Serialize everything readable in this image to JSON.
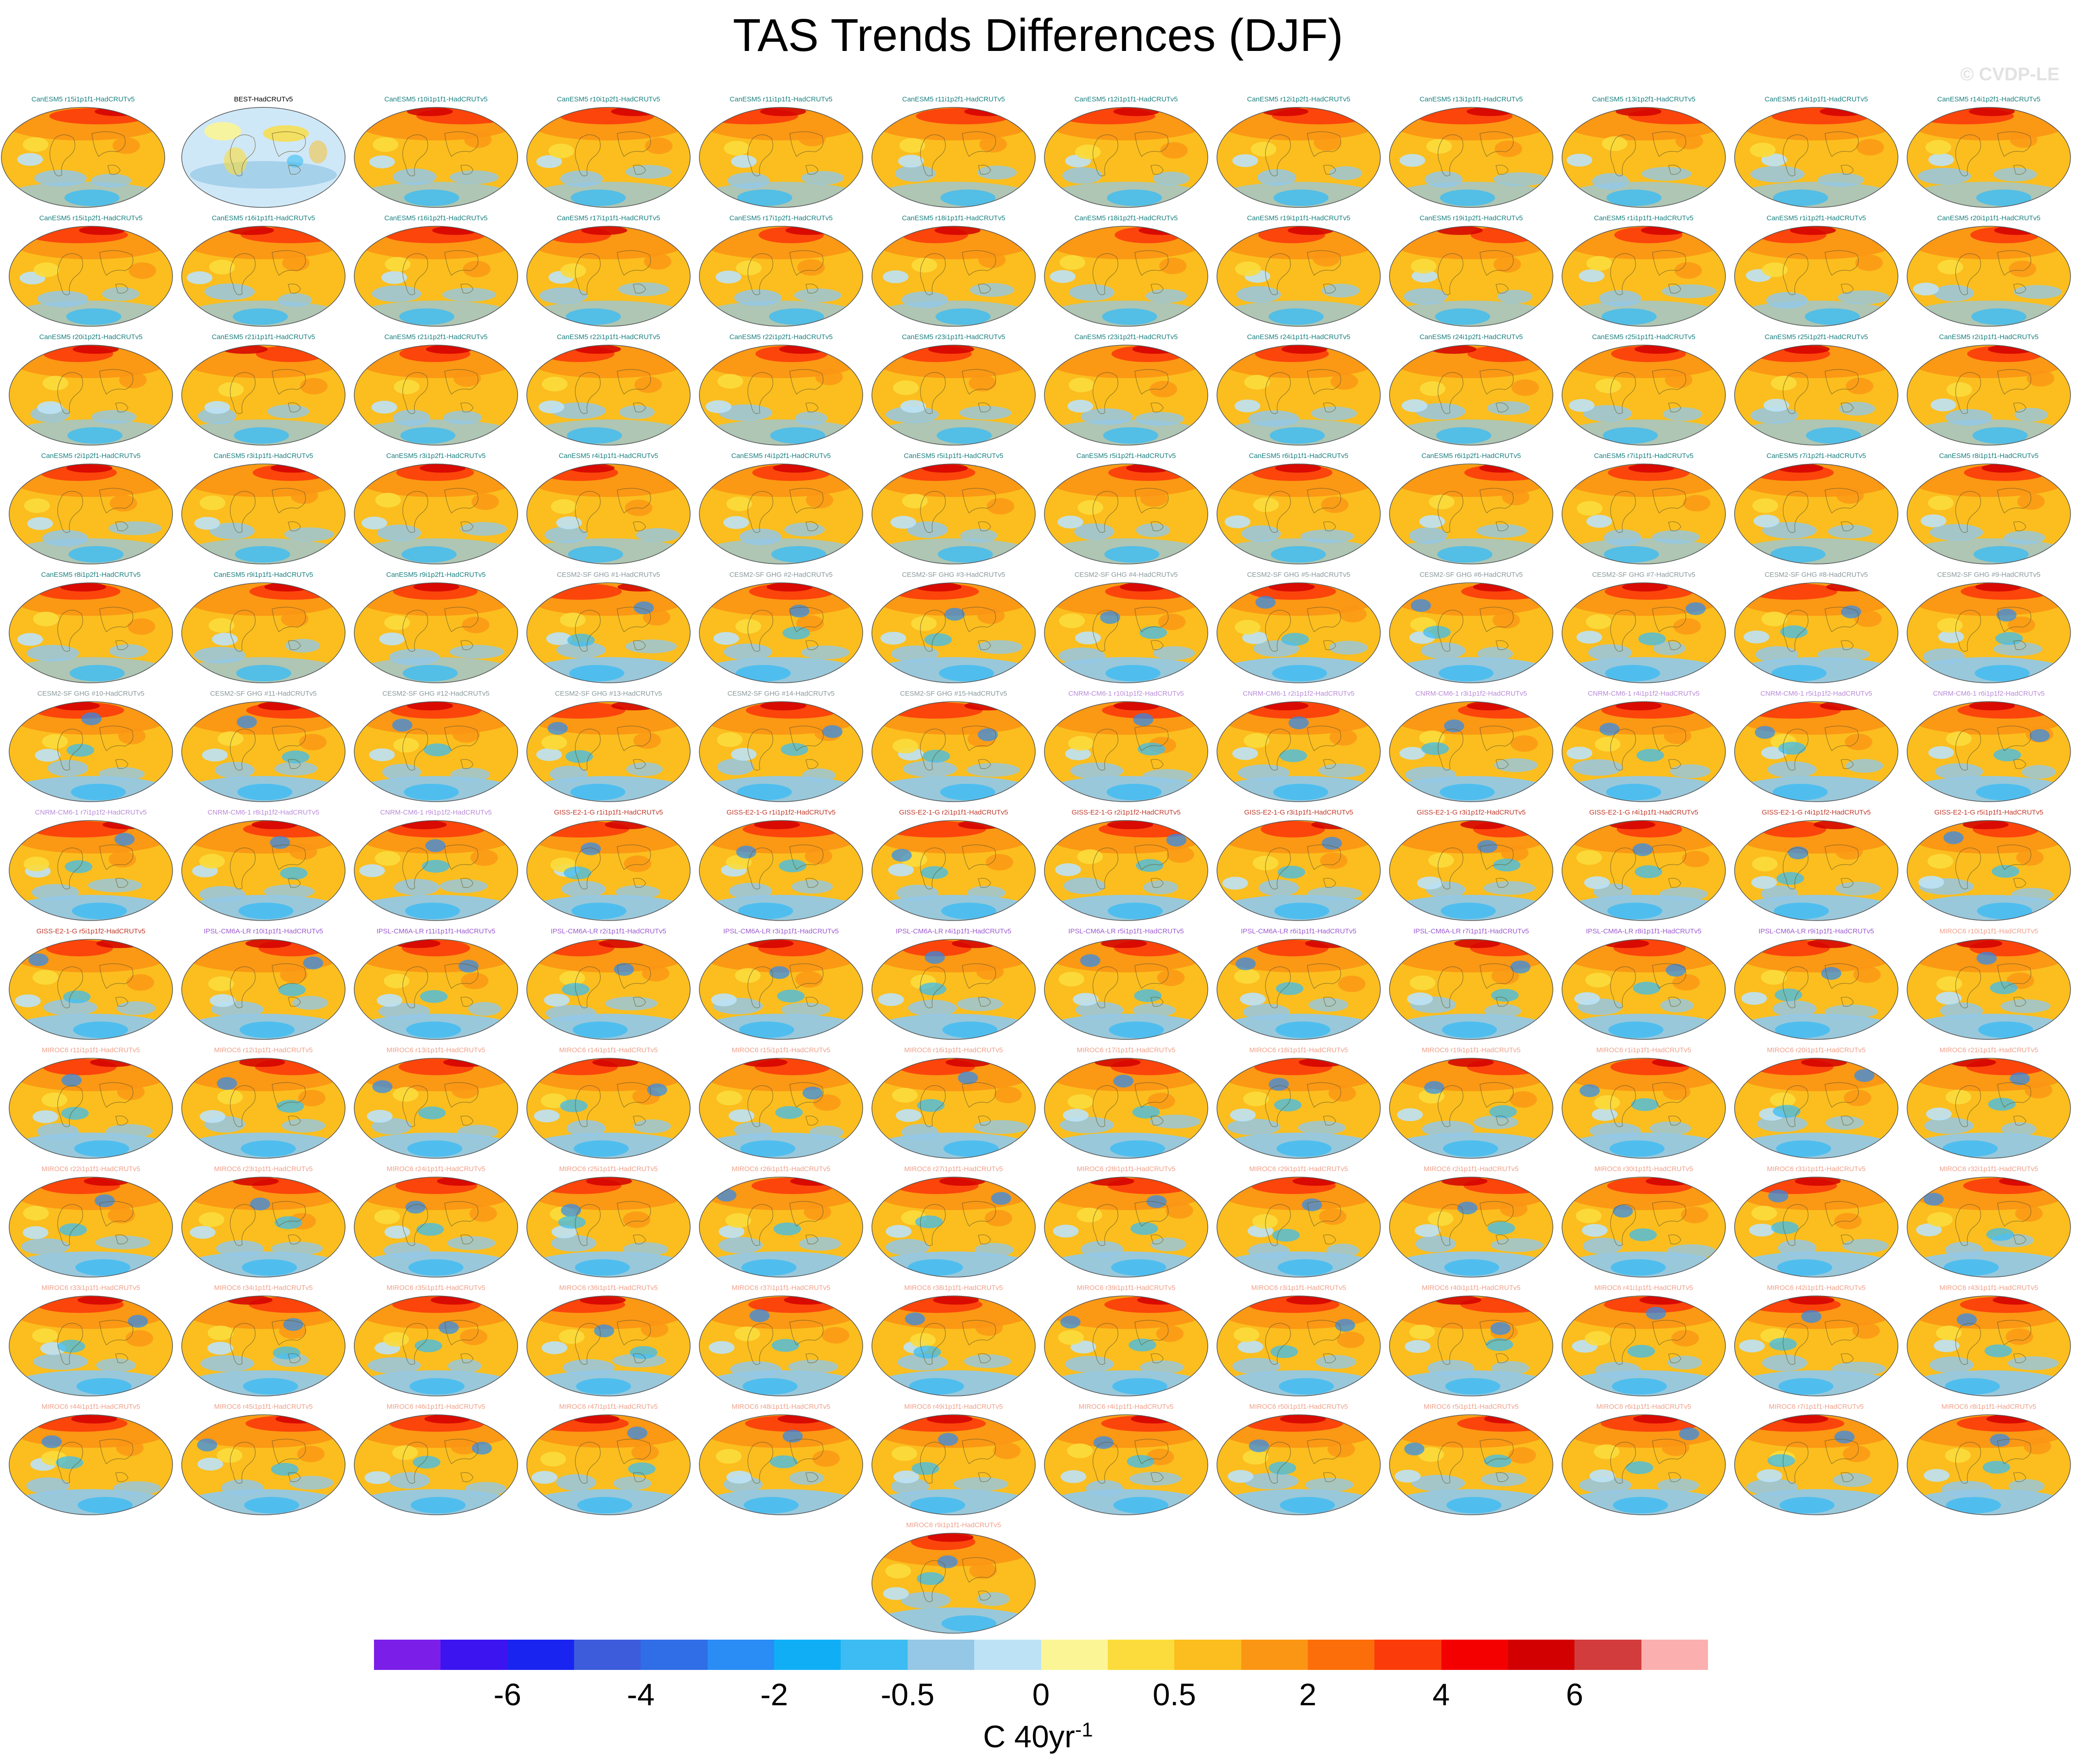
{
  "title": "TAS Trends Differences (DJF)",
  "watermark": "© CVDP-LE",
  "colorbar": {
    "colors": [
      "#7b1fe8",
      "#3c14f0",
      "#1a24f0",
      "#3c5cdb",
      "#2f6ee6",
      "#2a8cf5",
      "#10aff5",
      "#3cbcf2",
      "#94c8e6",
      "#bde2f6",
      "#fbf596",
      "#fbdc3c",
      "#fbbe1e",
      "#fb9614",
      "#fb6e0a",
      "#fb3c0a",
      "#f50000",
      "#d20000",
      "#d23c3c",
      "#fbafaf"
    ],
    "tick_labels": [
      "-6",
      "-4",
      "-2",
      "-0.5",
      "0",
      "0.5",
      "2",
      "4",
      "6"
    ],
    "units": "C 40yr",
    "units_exponent": "-1"
  },
  "legend_colors": {
    "BEST": "#000000",
    "CanESM5": "#1a7f7f",
    "CESM2": "#8a9a9a",
    "CNRM": "#b98ad8",
    "GISS": "#c0392b",
    "IPSL": "#9b59d0",
    "MIROC6": "#f0a08a"
  },
  "panels": [
    {
      "label": "BEST-HadCRUTv5",
      "group": "BEST",
      "style": "cool"
    },
    {
      "label": "CanESM5 r10i1p1f1-HadCRUTv5",
      "group": "CanESM5",
      "style": "warm"
    },
    {
      "label": "CanESM5 r10i1p2f1-HadCRUTv5",
      "group": "CanESM5",
      "style": "warm"
    },
    {
      "label": "CanESM5 r11i1p1f1-HadCRUTv5",
      "group": "CanESM5",
      "style": "warm"
    },
    {
      "label": "CanESM5 r11i1p2f1-HadCRUTv5",
      "group": "CanESM5",
      "style": "warm"
    },
    {
      "label": "CanESM5 r12i1p1f1-HadCRUTv5",
      "group": "CanESM5",
      "style": "warm"
    },
    {
      "label": "CanESM5 r12i1p2f1-HadCRUTv5",
      "group": "CanESM5",
      "style": "warm"
    },
    {
      "label": "CanESM5 r13i1p1f1-HadCRUTv5",
      "group": "CanESM5",
      "style": "warm"
    },
    {
      "label": "CanESM5 r13i1p2f1-HadCRUTv5",
      "group": "CanESM5",
      "style": "warm"
    },
    {
      "label": "CanESM5 r14i1p1f1-HadCRUTv5",
      "group": "CanESM5",
      "style": "warm"
    },
    {
      "label": "CanESM5 r14i1p2f1-HadCRUTv5",
      "group": "CanESM5",
      "style": "warm"
    },
    {
      "label": "CanESM5 r15i1p1f1-HadCRUTv5",
      "group": "CanESM5",
      "style": "warm"
    },
    {
      "label": "CanESM5 r15i1p2f1-HadCRUTv5",
      "group": "CanESM5",
      "style": "warm"
    },
    {
      "label": "CanESM5 r16i1p1f1-HadCRUTv5",
      "group": "CanESM5",
      "style": "warm"
    },
    {
      "label": "CanESM5 r16i1p2f1-HadCRUTv5",
      "group": "CanESM5",
      "style": "warm"
    },
    {
      "label": "CanESM5 r17i1p1f1-HadCRUTv5",
      "group": "CanESM5",
      "style": "warm"
    },
    {
      "label": "CanESM5 r17i1p2f1-HadCRUTv5",
      "group": "CanESM5",
      "style": "warm"
    },
    {
      "label": "CanESM5 r18i1p1f1-HadCRUTv5",
      "group": "CanESM5",
      "style": "warm"
    },
    {
      "label": "CanESM5 r18i1p2f1-HadCRUTv5",
      "group": "CanESM5",
      "style": "warm"
    },
    {
      "label": "CanESM5 r19i1p1f1-HadCRUTv5",
      "group": "CanESM5",
      "style": "warm"
    },
    {
      "label": "CanESM5 r19i1p2f1-HadCRUTv5",
      "group": "CanESM5",
      "style": "warm"
    },
    {
      "label": "CanESM5 r1i1p1f1-HadCRUTv5",
      "group": "CanESM5",
      "style": "warm"
    },
    {
      "label": "CanESM5 r1i1p2f1-HadCRUTv5",
      "group": "CanESM5",
      "style": "warm"
    },
    {
      "label": "CanESM5 r20i1p1f1-HadCRUTv5",
      "group": "CanESM5",
      "style": "warm"
    },
    {
      "label": "CanESM5 r20i1p2f1-HadCRUTv5",
      "group": "CanESM5",
      "style": "warm"
    },
    {
      "label": "CanESM5 r21i1p1f1-HadCRUTv5",
      "group": "CanESM5",
      "style": "warm"
    },
    {
      "label": "CanESM5 r21i1p2f1-HadCRUTv5",
      "group": "CanESM5",
      "style": "warm"
    },
    {
      "label": "CanESM5 r22i1p1f1-HadCRUTv5",
      "group": "CanESM5",
      "style": "warm"
    },
    {
      "label": "CanESM5 r22i1p2f1-HadCRUTv5",
      "group": "CanESM5",
      "style": "warm"
    },
    {
      "label": "CanESM5 r23i1p1f1-HadCRUTv5",
      "group": "CanESM5",
      "style": "warm"
    },
    {
      "label": "CanESM5 r23i1p2f1-HadCRUTv5",
      "group": "CanESM5",
      "style": "warm"
    },
    {
      "label": "CanESM5 r24i1p1f1-HadCRUTv5",
      "group": "CanESM5",
      "style": "warm"
    },
    {
      "label": "CanESM5 r24i1p2f1-HadCRUTv5",
      "group": "CanESM5",
      "style": "warm"
    },
    {
      "label": "CanESM5 r25i1p1f1-HadCRUTv5",
      "group": "CanESM5",
      "style": "warm"
    },
    {
      "label": "CanESM5 r25i1p2f1-HadCRUTv5",
      "group": "CanESM5",
      "style": "warm"
    },
    {
      "label": "CanESM5 r2i1p1f1-HadCRUTv5",
      "group": "CanESM5",
      "style": "warm"
    },
    {
      "label": "CanESM5 r2i1p2f1-HadCRUTv5",
      "group": "CanESM5",
      "style": "warm"
    },
    {
      "label": "CanESM5 r3i1p1f1-HadCRUTv5",
      "group": "CanESM5",
      "style": "warm"
    },
    {
      "label": "CanESM5 r3i1p2f1-HadCRUTv5",
      "group": "CanESM5",
      "style": "warm"
    },
    {
      "label": "CanESM5 r4i1p1f1-HadCRUTv5",
      "group": "CanESM5",
      "style": "warm"
    },
    {
      "label": "CanESM5 r4i1p2f1-HadCRUTv5",
      "group": "CanESM5",
      "style": "warm"
    },
    {
      "label": "CanESM5 r5i1p1f1-HadCRUTv5",
      "group": "CanESM5",
      "style": "warm"
    },
    {
      "label": "CanESM5 r5i1p2f1-HadCRUTv5",
      "group": "CanESM5",
      "style": "warm"
    },
    {
      "label": "CanESM5 r6i1p1f1-HadCRUTv5",
      "group": "CanESM5",
      "style": "warm"
    },
    {
      "label": "CanESM5 r6i1p2f1-HadCRUTv5",
      "group": "CanESM5",
      "style": "warm"
    },
    {
      "label": "CanESM5 r7i1p1f1-HadCRUTv5",
      "group": "CanESM5",
      "style": "warm"
    },
    {
      "label": "CanESM5 r7i1p2f1-HadCRUTv5",
      "group": "CanESM5",
      "style": "warm"
    },
    {
      "label": "CanESM5 r8i1p1f1-HadCRUTv5",
      "group": "CanESM5",
      "style": "warm"
    },
    {
      "label": "CanESM5 r8i1p2f1-HadCRUTv5",
      "group": "CanESM5",
      "style": "warm"
    },
    {
      "label": "CanESM5 r9i1p1f1-HadCRUTv5",
      "group": "CanESM5",
      "style": "warm"
    },
    {
      "label": "CanESM5 r9i1p2f1-HadCRUTv5",
      "group": "CanESM5",
      "style": "warm"
    },
    {
      "label": "CESM2-SF GHG #1-HadCRUTv5",
      "group": "CESM2",
      "style": "mixed"
    },
    {
      "label": "CESM2-SF GHG #2-HadCRUTv5",
      "group": "CESM2",
      "style": "mixed"
    },
    {
      "label": "CESM2-SF GHG #3-HadCRUTv5",
      "group": "CESM2",
      "style": "mixed"
    },
    {
      "label": "CESM2-SF GHG #4-HadCRUTv5",
      "group": "CESM2",
      "style": "mixed"
    },
    {
      "label": "CESM2-SF GHG #5-HadCRUTv5",
      "group": "CESM2",
      "style": "mixed"
    },
    {
      "label": "CESM2-SF GHG #6-HadCRUTv5",
      "group": "CESM2",
      "style": "mixed"
    },
    {
      "label": "CESM2-SF GHG #7-HadCRUTv5",
      "group": "CESM2",
      "style": "mixed"
    },
    {
      "label": "CESM2-SF GHG #8-HadCRUTv5",
      "group": "CESM2",
      "style": "mixed"
    },
    {
      "label": "CESM2-SF GHG #9-HadCRUTv5",
      "group": "CESM2",
      "style": "mixed"
    },
    {
      "label": "CESM2-SF GHG #10-HadCRUTv5",
      "group": "CESM2",
      "style": "mixed"
    },
    {
      "label": "CESM2-SF GHG #11-HadCRUTv5",
      "group": "CESM2",
      "style": "mixed"
    },
    {
      "label": "CESM2-SF GHG #12-HadCRUTv5",
      "group": "CESM2",
      "style": "mixed"
    },
    {
      "label": "CESM2-SF GHG #13-HadCRUTv5",
      "group": "CESM2",
      "style": "mixed"
    },
    {
      "label": "CESM2-SF GHG #14-HadCRUTv5",
      "group": "CESM2",
      "style": "mixed"
    },
    {
      "label": "CESM2-SF GHG #15-HadCRUTv5",
      "group": "CESM2",
      "style": "mixed"
    },
    {
      "label": "CNRM-CM6-1 r10i1p1f2-HadCRUTv5",
      "group": "CNRM",
      "style": "mixed"
    },
    {
      "label": "CNRM-CM6-1 r2i1p1f2-HadCRUTv5",
      "group": "CNRM",
      "style": "mixed"
    },
    {
      "label": "CNRM-CM6-1 r3i1p1f2-HadCRUTv5",
      "group": "CNRM",
      "style": "mixed"
    },
    {
      "label": "CNRM-CM6-1 r4i1p1f2-HadCRUTv5",
      "group": "CNRM",
      "style": "mixed"
    },
    {
      "label": "CNRM-CM6-1 r5i1p1f2-HadCRUTv5",
      "group": "CNRM",
      "style": "mixed"
    },
    {
      "label": "CNRM-CM6-1 r6i1p1f2-HadCRUTv5",
      "group": "CNRM",
      "style": "mixed"
    },
    {
      "label": "CNRM-CM6-1 r7i1p1f2-HadCRUTv5",
      "group": "CNRM",
      "style": "mixed"
    },
    {
      "label": "CNRM-CM6-1 r8i1p1f2-HadCRUTv5",
      "group": "CNRM",
      "style": "mixed"
    },
    {
      "label": "CNRM-CM6-1 r9i1p1f2-HadCRUTv5",
      "group": "CNRM",
      "style": "mixed"
    },
    {
      "label": "GISS-E2-1-G r1i1p1f1-HadCRUTv5",
      "group": "GISS",
      "style": "mixed"
    },
    {
      "label": "GISS-E2-1-G r1i1p1f2-HadCRUTv5",
      "group": "GISS",
      "style": "mixed"
    },
    {
      "label": "GISS-E2-1-G r2i1p1f1-HadCRUTv5",
      "group": "GISS",
      "style": "mixed"
    },
    {
      "label": "GISS-E2-1-G r2i1p1f2-HadCRUTv5",
      "group": "GISS",
      "style": "mixed"
    },
    {
      "label": "GISS-E2-1-G r3i1p1f1-HadCRUTv5",
      "group": "GISS",
      "style": "mixed"
    },
    {
      "label": "GISS-E2-1-G r3i1p1f2-HadCRUTv5",
      "group": "GISS",
      "style": "mixed"
    },
    {
      "label": "GISS-E2-1-G r4i1p1f1-HadCRUTv5",
      "group": "GISS",
      "style": "mixed"
    },
    {
      "label": "GISS-E2-1-G r4i1p1f2-HadCRUTv5",
      "group": "GISS",
      "style": "mixed"
    },
    {
      "label": "GISS-E2-1-G r5i1p1f1-HadCRUTv5",
      "group": "GISS",
      "style": "mixed"
    },
    {
      "label": "GISS-E2-1-G r5i1p1f2-HadCRUTv5",
      "group": "GISS",
      "style": "mixed"
    },
    {
      "label": "IPSL-CM6A-LR r10i1p1f1-HadCRUTv5",
      "group": "IPSL",
      "style": "mixed"
    },
    {
      "label": "IPSL-CM6A-LR r11i1p1f1-HadCRUTv5",
      "group": "IPSL",
      "style": "mixed"
    },
    {
      "label": "IPSL-CM6A-LR r2i1p1f1-HadCRUTv5",
      "group": "IPSL",
      "style": "mixed"
    },
    {
      "label": "IPSL-CM6A-LR r3i1p1f1-HadCRUTv5",
      "group": "IPSL",
      "style": "mixed"
    },
    {
      "label": "IPSL-CM6A-LR r4i1p1f1-HadCRUTv5",
      "group": "IPSL",
      "style": "mixed"
    },
    {
      "label": "IPSL-CM6A-LR r5i1p1f1-HadCRUTv5",
      "group": "IPSL",
      "style": "mixed"
    },
    {
      "label": "IPSL-CM6A-LR r6i1p1f1-HadCRUTv5",
      "group": "IPSL",
      "style": "mixed"
    },
    {
      "label": "IPSL-CM6A-LR r7i1p1f1-HadCRUTv5",
      "group": "IPSL",
      "style": "mixed"
    },
    {
      "label": "IPSL-CM6A-LR r8i1p1f1-HadCRUTv5",
      "group": "IPSL",
      "style": "mixed"
    },
    {
      "label": "IPSL-CM6A-LR r9i1p1f1-HadCRUTv5",
      "group": "IPSL",
      "style": "mixed"
    },
    {
      "label": "MIROC6 r10i1p1f1-HadCRUTv5",
      "group": "MIROC6",
      "style": "mixed"
    },
    {
      "label": "MIROC6 r11i1p1f1-HadCRUTv5",
      "group": "MIROC6",
      "style": "mixed"
    },
    {
      "label": "MIROC6 r12i1p1f1-HadCRUTv5",
      "group": "MIROC6",
      "style": "mixed"
    },
    {
      "label": "MIROC6 r13i1p1f1-HadCRUTv5",
      "group": "MIROC6",
      "style": "mixed"
    },
    {
      "label": "MIROC6 r14i1p1f1-HadCRUTv5",
      "group": "MIROC6",
      "style": "mixed"
    },
    {
      "label": "MIROC6 r15i1p1f1-HadCRUTv5",
      "group": "MIROC6",
      "style": "mixed"
    },
    {
      "label": "MIROC6 r16i1p1f1-HadCRUTv5",
      "group": "MIROC6",
      "style": "mixed"
    },
    {
      "label": "MIROC6 r17i1p1f1-HadCRUTv5",
      "group": "MIROC6",
      "style": "mixed"
    },
    {
      "label": "MIROC6 r18i1p1f1-HadCRUTv5",
      "group": "MIROC6",
      "style": "mixed"
    },
    {
      "label": "MIROC6 r19i1p1f1-HadCRUTv5",
      "group": "MIROC6",
      "style": "mixed"
    },
    {
      "label": "MIROC6 r1i1p1f1-HadCRUTv5",
      "group": "MIROC6",
      "style": "mixed"
    },
    {
      "label": "MIROC6 r20i1p1f1-HadCRUTv5",
      "group": "MIROC6",
      "style": "mixed"
    },
    {
      "label": "MIROC6 r21i1p1f1-HadCRUTv5",
      "group": "MIROC6",
      "style": "mixed"
    },
    {
      "label": "MIROC6 r22i1p1f1-HadCRUTv5",
      "group": "MIROC6",
      "style": "mixed"
    },
    {
      "label": "MIROC6 r23i1p1f1-HadCRUTv5",
      "group": "MIROC6",
      "style": "mixed"
    },
    {
      "label": "MIROC6 r24i1p1f1-HadCRUTv5",
      "group": "MIROC6",
      "style": "mixed"
    },
    {
      "label": "MIROC6 r25i1p1f1-HadCRUTv5",
      "group": "MIROC6",
      "style": "mixed"
    },
    {
      "label": "MIROC6 r26i1p1f1-HadCRUTv5",
      "group": "MIROC6",
      "style": "mixed"
    },
    {
      "label": "MIROC6 r27i1p1f1-HadCRUTv5",
      "group": "MIROC6",
      "style": "mixed"
    },
    {
      "label": "MIROC6 r28i1p1f1-HadCRUTv5",
      "group": "MIROC6",
      "style": "mixed"
    },
    {
      "label": "MIROC6 r29i1p1f1-HadCRUTv5",
      "group": "MIROC6",
      "style": "mixed"
    },
    {
      "label": "MIROC6 r2i1p1f1-HadCRUTv5",
      "group": "MIROC6",
      "style": "mixed"
    },
    {
      "label": "MIROC6 r30i1p1f1-HadCRUTv5",
      "group": "MIROC6",
      "style": "mixed"
    },
    {
      "label": "MIROC6 r31i1p1f1-HadCRUTv5",
      "group": "MIROC6",
      "style": "mixed"
    },
    {
      "label": "MIROC6 r32i1p1f1-HadCRUTv5",
      "group": "MIROC6",
      "style": "mixed"
    },
    {
      "label": "MIROC6 r33i1p1f1-HadCRUTv5",
      "group": "MIROC6",
      "style": "mixed"
    },
    {
      "label": "MIROC6 r34i1p1f1-HadCRUTv5",
      "group": "MIROC6",
      "style": "mixed"
    },
    {
      "label": "MIROC6 r35i1p1f1-HadCRUTv5",
      "group": "MIROC6",
      "style": "mixed"
    },
    {
      "label": "MIROC6 r36i1p1f1-HadCRUTv5",
      "group": "MIROC6",
      "style": "mixed"
    },
    {
      "label": "MIROC6 r37i1p1f1-HadCRUTv5",
      "group": "MIROC6",
      "style": "mixed"
    },
    {
      "label": "MIROC6 r38i1p1f1-HadCRUTv5",
      "group": "MIROC6",
      "style": "mixed"
    },
    {
      "label": "MIROC6 r39i1p1f1-HadCRUTv5",
      "group": "MIROC6",
      "style": "mixed"
    },
    {
      "label": "MIROC6 r3i1p1f1-HadCRUTv5",
      "group": "MIROC6",
      "style": "mixed"
    },
    {
      "label": "MIROC6 r40i1p1f1-HadCRUTv5",
      "group": "MIROC6",
      "style": "mixed"
    },
    {
      "label": "MIROC6 r41i1p1f1-HadCRUTv5",
      "group": "MIROC6",
      "style": "mixed"
    },
    {
      "label": "MIROC6 r42i1p1f1-HadCRUTv5",
      "group": "MIROC6",
      "style": "mixed"
    },
    {
      "label": "MIROC6 r43i1p1f1-HadCRUTv5",
      "group": "MIROC6",
      "style": "mixed"
    },
    {
      "label": "MIROC6 r44i1p1f1-HadCRUTv5",
      "group": "MIROC6",
      "style": "mixed"
    },
    {
      "label": "MIROC6 r45i1p1f1-HadCRUTv5",
      "group": "MIROC6",
      "style": "mixed"
    },
    {
      "label": "MIROC6 r46i1p1f1-HadCRUTv5",
      "group": "MIROC6",
      "style": "mixed"
    },
    {
      "label": "MIROC6 r47i1p1f1-HadCRUTv5",
      "group": "MIROC6",
      "style": "mixed"
    },
    {
      "label": "MIROC6 r48i1p1f1-HadCRUTv5",
      "group": "MIROC6",
      "style": "mixed"
    },
    {
      "label": "MIROC6 r49i1p1f1-HadCRUTv5",
      "group": "MIROC6",
      "style": "mixed"
    },
    {
      "label": "MIROC6 r4i1p1f1-HadCRUTv5",
      "group": "MIROC6",
      "style": "mixed"
    },
    {
      "label": "MIROC6 r50i1p1f1-HadCRUTv5",
      "group": "MIROC6",
      "style": "mixed"
    },
    {
      "label": "MIROC6 r5i1p1f1-HadCRUTv5",
      "group": "MIROC6",
      "style": "mixed"
    },
    {
      "label": "MIROC6 r6i1p1f1-HadCRUTv5",
      "group": "MIROC6",
      "style": "mixed"
    },
    {
      "label": "MIROC6 r7i1p1f1-HadCRUTv5",
      "group": "MIROC6",
      "style": "mixed"
    },
    {
      "label": "MIROC6 r8i1p1f1-HadCRUTv5",
      "group": "MIROC6",
      "style": "mixed"
    },
    {
      "label": "MIROC6 r9i1p1f1-HadCRUTv5",
      "group": "MIROC6",
      "style": "mixed"
    }
  ],
  "chart_data": {
    "type": "heatmap",
    "title": "TAS Trends Differences (DJF)",
    "colorbar_label": "C 40yr-1",
    "contour_levels": [
      -7,
      -6,
      -5,
      -4,
      -3,
      -2,
      -1,
      -0.5,
      -0.25,
      0,
      0.25,
      0.5,
      1,
      2,
      3,
      4,
      5,
      6,
      7
    ],
    "colorbar_tick_values": [
      -6,
      -4,
      -2,
      -0.5,
      0,
      0.5,
      2,
      4,
      6
    ]
  }
}
